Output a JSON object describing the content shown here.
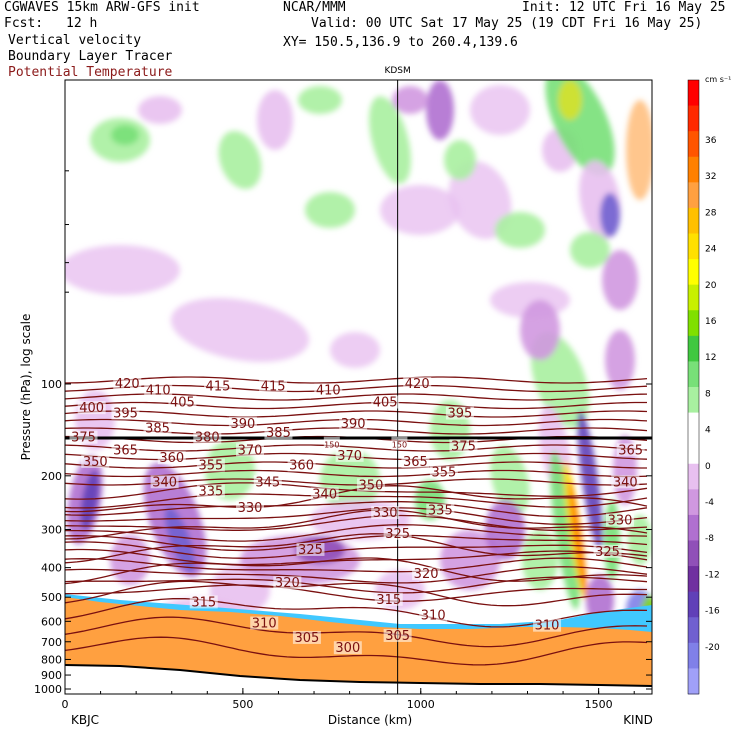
{
  "header": {
    "model": "CGWAVES 15km ARW-GFS init",
    "org": "NCAR/MMM",
    "init": "Init: 12 UTC Fri 16 May 25",
    "fcst_label": "Fcst:",
    "fcst_value": "12 h",
    "valid": "Valid: 00 UTC Sat 17 May 25 (19 CDT Fri 16 May 25)",
    "field1": "Vertical velocity",
    "field2": "Boundary Layer Tracer",
    "field3": "Potential Temperature",
    "xy": "XY= 150.5,136.9 to 260.4,139.6",
    "field3_color": "#8b1a1a"
  },
  "chart_data": {
    "type": "heatmap",
    "title": "KDSM",
    "xlabel": "Distance (km)",
    "ylabel": "Pressure (hPa), log scale",
    "xlim": [
      0,
      1650
    ],
    "x_ticks": [
      "0",
      "500",
      "1000",
      "1500"
    ],
    "x_tick_values": [
      0,
      500,
      1000,
      1500
    ],
    "y_scale": "log",
    "y_ticks": [
      "100",
      "200",
      "300",
      "400",
      "500",
      "600",
      "700",
      "800",
      "900",
      "1000"
    ],
    "y_tick_values": [
      100,
      200,
      300,
      400,
      500,
      600,
      700,
      800,
      900,
      1000
    ],
    "left_station": "KBJC",
    "right_station": "KIND",
    "marker_x_km": 935,
    "tropopause_label": "150",
    "colorbar": {
      "unit": "cm s⁻¹",
      "labels": [
        "36",
        "32",
        "28",
        "24",
        "20",
        "16",
        "12",
        "8",
        "4",
        "0",
        "-4",
        "-8",
        "-12",
        "-16",
        "-20"
      ],
      "label_values": [
        36,
        32,
        28,
        24,
        20,
        16,
        12,
        8,
        4,
        0,
        -4,
        -8,
        -12,
        -16,
        -20
      ],
      "colors": [
        "#ff0000",
        "#ff2a00",
        "#ff5500",
        "#ff8000",
        "#ffa040",
        "#ffc000",
        "#ffe000",
        "#ffff00",
        "#c8f000",
        "#80e000",
        "#40c840",
        "#78e078",
        "#a8f0a0",
        "#ffffff",
        "#ffffff",
        "#e8c0f0",
        "#d098e0",
        "#b070d0",
        "#9050b8",
        "#7030a0",
        "#6040b8",
        "#7060d0",
        "#8080e8",
        "#a0a0f8"
      ]
    },
    "theta_labels": [
      {
        "v": "420",
        "x": 175,
        "p": 100
      },
      {
        "v": "410",
        "x": 262,
        "p": 105
      },
      {
        "v": "415",
        "x": 430,
        "p": 102
      },
      {
        "v": "415",
        "x": 585,
        "p": 102
      },
      {
        "v": "410",
        "x": 740,
        "p": 105
      },
      {
        "v": "420",
        "x": 990,
        "p": 100
      },
      {
        "v": "400",
        "x": 75,
        "p": 120
      },
      {
        "v": "395",
        "x": 170,
        "p": 125
      },
      {
        "v": "405",
        "x": 330,
        "p": 115
      },
      {
        "v": "405",
        "x": 900,
        "p": 115
      },
      {
        "v": "395",
        "x": 1110,
        "p": 125
      },
      {
        "v": "385",
        "x": 260,
        "p": 140
      },
      {
        "v": "390",
        "x": 500,
        "p": 135
      },
      {
        "v": "385",
        "x": 600,
        "p": 145
      },
      {
        "v": "390",
        "x": 810,
        "p": 135
      },
      {
        "v": "380",
        "x": 400,
        "p": 150
      },
      {
        "v": "375",
        "x": 52,
        "p": 150
      },
      {
        "v": "365",
        "x": 170,
        "p": 165
      },
      {
        "v": "370",
        "x": 520,
        "p": 165
      },
      {
        "v": "370",
        "x": 800,
        "p": 172
      },
      {
        "v": "375",
        "x": 1120,
        "p": 160
      },
      {
        "v": "365",
        "x": 1590,
        "p": 165
      },
      {
        "v": "360",
        "x": 300,
        "p": 175
      },
      {
        "v": "360",
        "x": 665,
        "p": 185
      },
      {
        "v": "365",
        "x": 985,
        "p": 180
      },
      {
        "v": "350",
        "x": 85,
        "p": 180
      },
      {
        "v": "355",
        "x": 410,
        "p": 185
      },
      {
        "v": "355",
        "x": 1065,
        "p": 195
      },
      {
        "v": "340",
        "x": 280,
        "p": 210
      },
      {
        "v": "345",
        "x": 570,
        "p": 210
      },
      {
        "v": "350",
        "x": 860,
        "p": 215
      },
      {
        "v": "340",
        "x": 1575,
        "p": 210
      },
      {
        "v": "335",
        "x": 410,
        "p": 225
      },
      {
        "v": "340",
        "x": 730,
        "p": 230
      },
      {
        "v": "330",
        "x": 520,
        "p": 255
      },
      {
        "v": "330",
        "x": 900,
        "p": 265
      },
      {
        "v": "335",
        "x": 1055,
        "p": 260
      },
      {
        "v": "330",
        "x": 1560,
        "p": 280
      },
      {
        "v": "325",
        "x": 690,
        "p": 350
      },
      {
        "v": "325",
        "x": 935,
        "p": 310
      },
      {
        "v": "325",
        "x": 1525,
        "p": 355
      },
      {
        "v": "320",
        "x": 625,
        "p": 450
      },
      {
        "v": "320",
        "x": 1015,
        "p": 420
      },
      {
        "v": "315",
        "x": 390,
        "p": 520
      },
      {
        "v": "315",
        "x": 910,
        "p": 510
      },
      {
        "v": "310",
        "x": 560,
        "p": 610
      },
      {
        "v": "310",
        "x": 1035,
        "p": 575
      },
      {
        "v": "310",
        "x": 1355,
        "p": 620
      },
      {
        "v": "305",
        "x": 680,
        "p": 680
      },
      {
        "v": "305",
        "x": 935,
        "p": 670
      },
      {
        "v": "300",
        "x": 795,
        "p": 735
      },
      {
        "v": "150",
        "x": 750,
        "p": 157
      },
      {
        "v": "150",
        "x": 940,
        "p": 157
      }
    ]
  }
}
